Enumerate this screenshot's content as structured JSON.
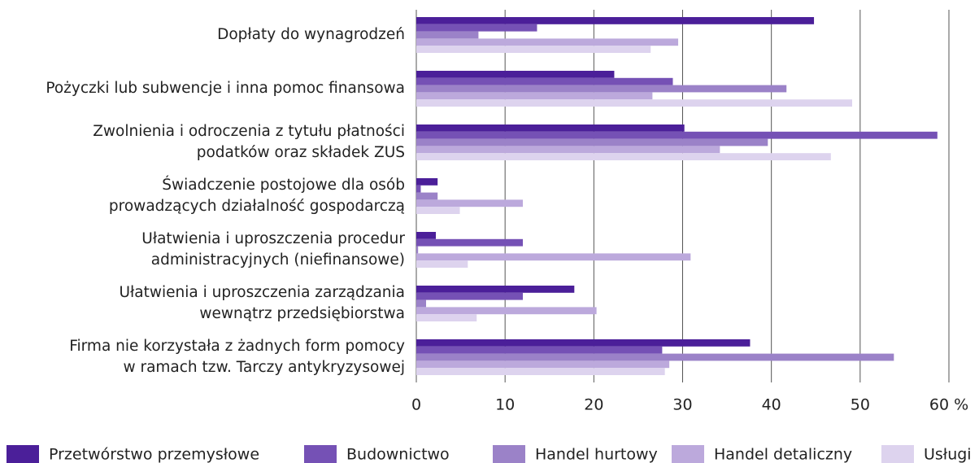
{
  "chart_data": {
    "type": "hbar",
    "categories": [
      "Dopłaty do wynagrodzeń",
      "Pożyczki lub subwencje i inna pomoc finansowa",
      "Zwolnienia i odroczenia z tytułu płatności\npodatków oraz składek ZUS",
      "Świadczenie postojowe dla osób\nprowadzących działalność gospodarczą",
      "Ułatwienia i uproszczenia procedur\nadministracyjnych (niefinansowe)",
      "Ułatwienia i uproszczenia zarządzania\nwewnątrz przedsiębiorstwa",
      "Firma nie korzystała z żadnych form pomocy\nw ramach tzw. Tarczy antykryzysowej"
    ],
    "series": [
      {
        "name": "Przetwórstwo przemysłowe",
        "color": "#4b1f99",
        "values": [
          44.8,
          22.3,
          30.2,
          2.4,
          2.2,
          17.8,
          37.6
        ]
      },
      {
        "name": "Budownictwo",
        "color": "#7551b5",
        "values": [
          13.6,
          28.9,
          58.7,
          0.5,
          12.0,
          12.0,
          27.7
        ]
      },
      {
        "name": "Handel hurtowy",
        "color": "#9b82c8",
        "values": [
          7.0,
          41.7,
          39.6,
          2.4,
          0.2,
          1.1,
          53.8
        ]
      },
      {
        "name": "Handel detaliczny",
        "color": "#bca9dc",
        "values": [
          29.5,
          26.6,
          34.2,
          12.0,
          30.9,
          20.3,
          28.5
        ]
      },
      {
        "name": "Usługi",
        "color": "#ddd3ee",
        "values": [
          26.4,
          49.1,
          46.7,
          4.9,
          5.8,
          6.8,
          28.0
        ]
      }
    ],
    "xlim": [
      0,
      60
    ],
    "xticks": [
      0,
      10,
      20,
      30,
      40,
      50,
      {
        "value": 60,
        "label": "60 %"
      }
    ],
    "grid": true
  }
}
